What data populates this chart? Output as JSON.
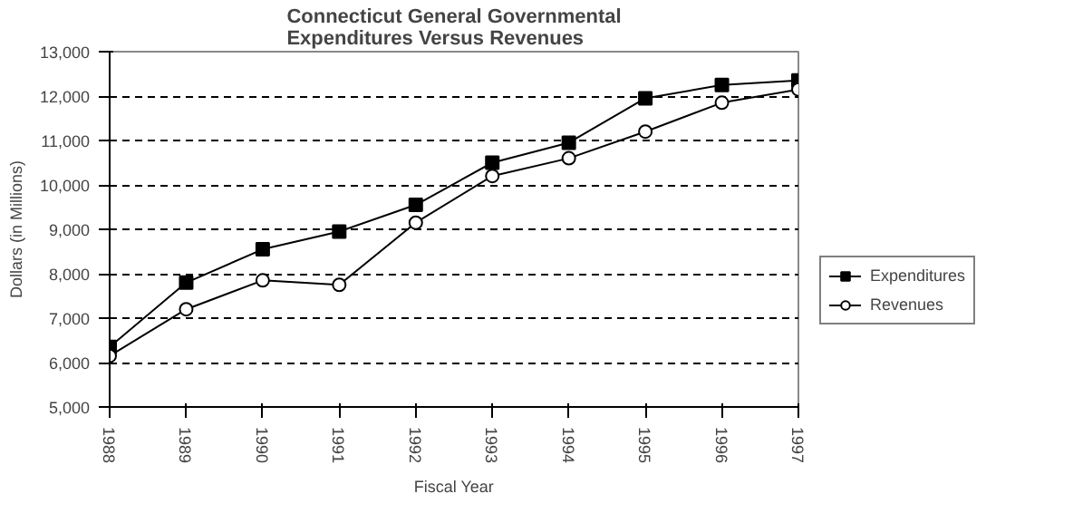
{
  "chart_data": {
    "type": "line",
    "title": "Connecticut General Governmental\nExpenditures Versus Revenues",
    "xlabel": "Fiscal Year",
    "ylabel": "Dollars (in Millions)",
    "x": [
      1988,
      1989,
      1990,
      1991,
      1992,
      1993,
      1994,
      1995,
      1996,
      1997
    ],
    "series": [
      {
        "name": "Expenditures",
        "color": "#000000",
        "marker": "square",
        "values": [
          6350,
          7800,
          8550,
          8950,
          9550,
          10500,
          10950,
          11950,
          12250,
          12350
        ]
      },
      {
        "name": "Revenues",
        "color": "#000000",
        "marker": "circle",
        "values": [
          6150,
          7200,
          7850,
          7750,
          9150,
          10200,
          10600,
          11200,
          11850,
          12150
        ]
      }
    ],
    "xlim": [
      1988,
      1997
    ],
    "xticks": [
      1988,
      1989,
      1990,
      1991,
      1992,
      1993,
      1994,
      1995,
      1996,
      1997
    ],
    "ylim": [
      5000,
      13000
    ],
    "yticks": [
      {
        "value": 5000,
        "label": "5,000"
      },
      {
        "value": 6000,
        "label": "6,000"
      },
      {
        "value": 7000,
        "label": "7,000"
      },
      {
        "value": 8000,
        "label": "8,000"
      },
      {
        "value": 9000,
        "label": "9,000"
      },
      {
        "value": 10000,
        "label": "10,000"
      },
      {
        "value": 11000,
        "label": "11,000"
      },
      {
        "value": 12000,
        "label": "12,000"
      },
      {
        "value": 13000,
        "label": "13,000"
      }
    ],
    "grid": "y",
    "legend": "right",
    "line_style": "solid"
  }
}
